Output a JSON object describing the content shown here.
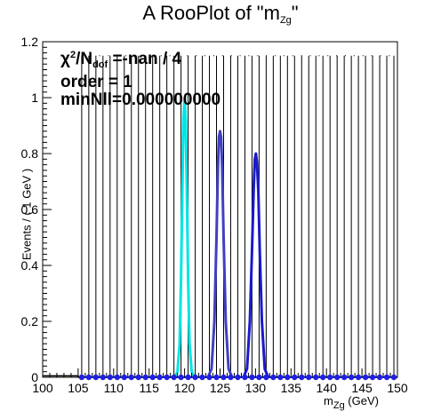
{
  "chart_data": {
    "type": "line",
    "title": "A RooPlot of \"m",
    "title_sub": "Zg",
    "title_end": "\"",
    "xlabel_main": "m",
    "xlabel_sub": "Zg",
    "xlabel_unit": " (GeV)",
    "ylabel": "Events / ( 1 GeV )",
    "xlim": [
      100,
      150
    ],
    "ylim": [
      0,
      1.2
    ],
    "x_ticks": [
      "100",
      "105",
      "110",
      "115",
      "120",
      "125",
      "130",
      "135",
      "140",
      "145",
      "150"
    ],
    "y_ticks": [
      "0",
      "0.2",
      "0.4",
      "0.6",
      "0.8",
      "1",
      "1.2"
    ],
    "stats": {
      "line1_a": "χ",
      "line1_sup": "2",
      "line1_b": "/N",
      "line1_sub": "dof",
      "line1_c": " =-nan / 4",
      "line2": "order = 1",
      "line3": "minNll=0.000000000"
    },
    "colors": {
      "cyan": "#00e5e5",
      "blue1": "#4040c0",
      "blue2": "#1a1acc",
      "data": "#2020e0"
    },
    "data_points": {
      "x": [
        105.5,
        106.5,
        107.5,
        108.5,
        109.5,
        110.5,
        111.5,
        112.5,
        113.5,
        114.5,
        115.5,
        116.5,
        117.5,
        118.5,
        119.5,
        120.5,
        121.5,
        122.5,
        123.5,
        124.5,
        125.5,
        126.5,
        127.5,
        128.5,
        129.5,
        130.5,
        131.5,
        132.5,
        133.5,
        134.5,
        135.5,
        136.5,
        137.5,
        138.5,
        139.5,
        140.5,
        141.5,
        142.5,
        143.5,
        144.5,
        145.5,
        146.5,
        147.5,
        148.5,
        149.5
      ],
      "y": 0,
      "error_high": 1.15
    },
    "series": [
      {
        "color": "#00e5e5",
        "x": [
          118.6,
          119.0,
          119.3,
          119.5,
          119.7,
          119.85,
          120.0,
          120.15,
          120.3,
          120.5,
          120.7,
          121.0,
          121.4
        ],
        "y": [
          0,
          0.02,
          0.12,
          0.35,
          0.7,
          0.92,
          1.0,
          0.92,
          0.7,
          0.35,
          0.12,
          0.02,
          0
        ]
      },
      {
        "color": "#4040c0",
        "x": [
          123.3,
          123.8,
          124.2,
          124.5,
          124.7,
          124.85,
          125.0,
          125.15,
          125.3,
          125.5,
          125.8,
          126.2,
          126.7
        ],
        "y": [
          0,
          0.03,
          0.2,
          0.5,
          0.75,
          0.86,
          0.88,
          0.86,
          0.75,
          0.5,
          0.2,
          0.03,
          0
        ]
      },
      {
        "color": "#1a1acc",
        "x": [
          128.3,
          128.8,
          129.2,
          129.5,
          129.75,
          129.9,
          130.05,
          130.2,
          130.4,
          130.6,
          130.9,
          131.3,
          131.8
        ],
        "y": [
          0,
          0.03,
          0.2,
          0.45,
          0.68,
          0.78,
          0.8,
          0.77,
          0.66,
          0.45,
          0.2,
          0.03,
          0
        ]
      },
      {
        "color": "#000000",
        "x": [
          100,
          105,
          105,
          150
        ],
        "y": [
          0.005,
          0.005,
          0,
          0
        ]
      }
    ],
    "grid": false
  }
}
